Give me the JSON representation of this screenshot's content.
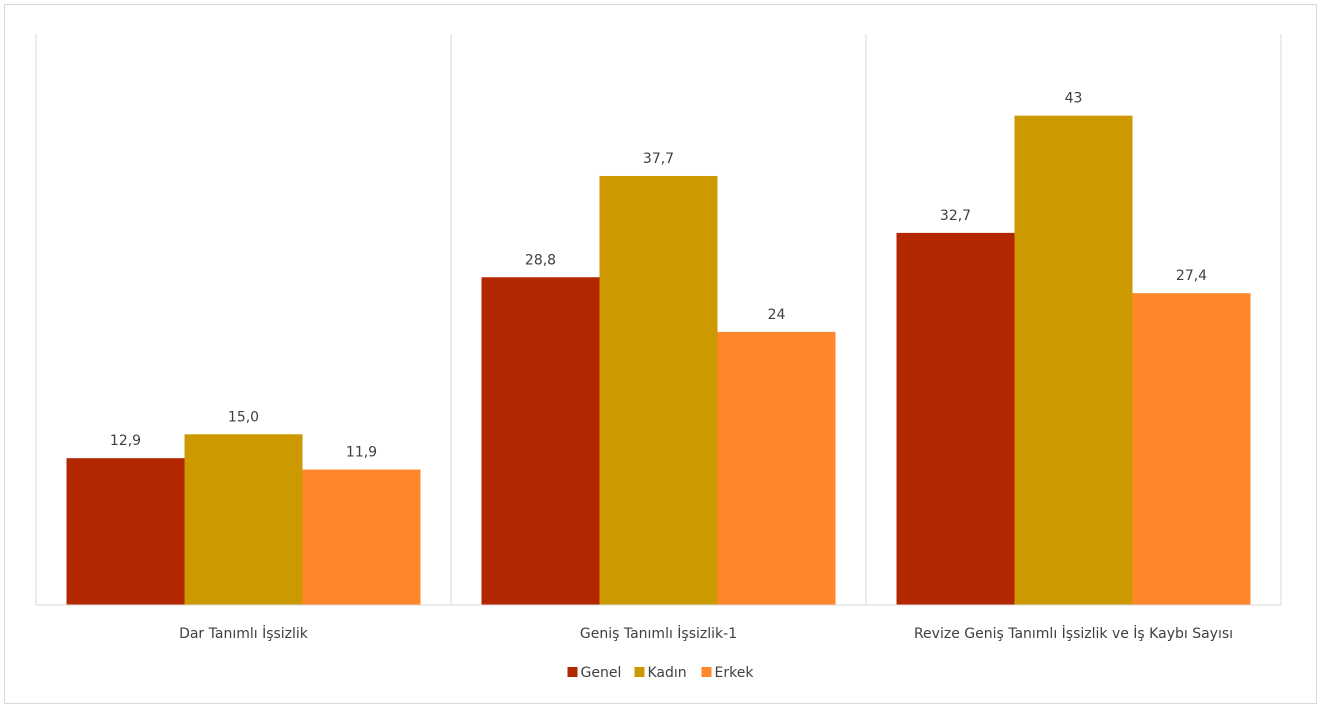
{
  "chart_data": {
    "type": "bar",
    "title": "",
    "xlabel": "",
    "ylabel": "",
    "ylim": [
      0,
      45
    ],
    "grid": false,
    "legend_position": "bottom",
    "categories": [
      "Dar Tanımlı İşsizlik",
      "Geniş Tanımlı İşsizlik-1",
      "Revize Geniş Tanımlı İşsizlik ve İş Kaybı Sayısı"
    ],
    "series": [
      {
        "name": "Genel",
        "color": "#b22600",
        "values": [
          12.9,
          28.8,
          32.7
        ],
        "labels": [
          "12,9",
          "28,8",
          "32,7"
        ]
      },
      {
        "name": "Kadın",
        "color": "#cc9900",
        "values": [
          15.0,
          37.7,
          43
        ],
        "labels": [
          "15,0",
          "37,7",
          "43"
        ]
      },
      {
        "name": "Erkek",
        "color": "#ff862a",
        "values": [
          11.9,
          24,
          27.4
        ],
        "labels": [
          "11,9",
          "24",
          "27,4"
        ]
      }
    ]
  }
}
